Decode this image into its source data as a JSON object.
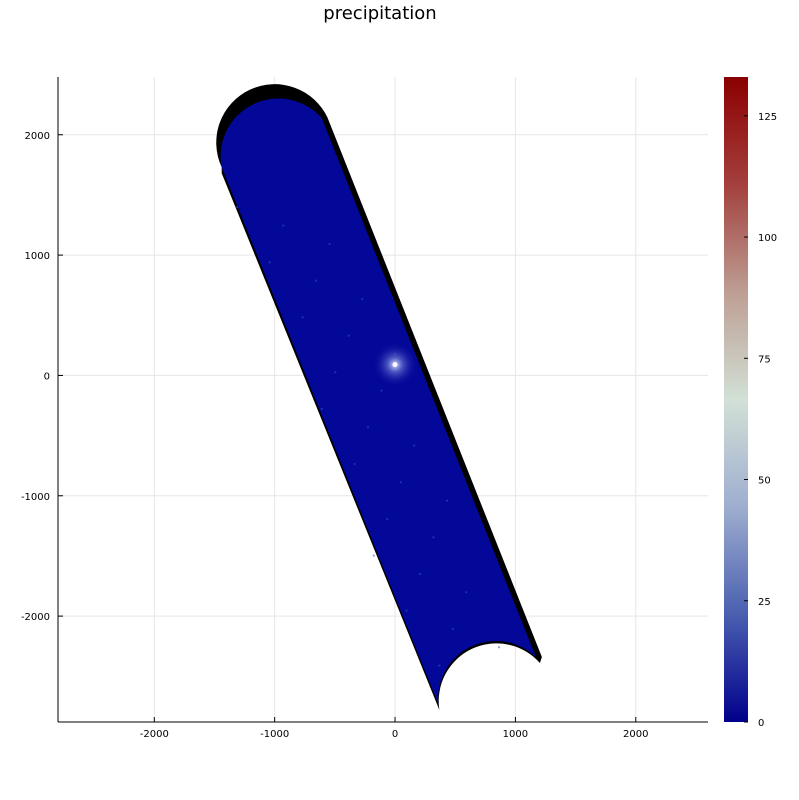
{
  "chart_data": {
    "type": "heatmap",
    "title": "precipitation",
    "xlabel": "",
    "ylabel": "",
    "xlim": [
      -2800,
      2600
    ],
    "ylim": [
      -2880,
      2480
    ],
    "grid": true,
    "x_ticks": [
      -2000,
      -1000,
      0,
      1000,
      2000
    ],
    "y_ticks": [
      2000,
      1000,
      0,
      -1000,
      -2000
    ],
    "colorbar": {
      "min": 0,
      "max": 133,
      "ticks": [
        0,
        25,
        50,
        75,
        100,
        125
      ],
      "colormap": [
        "#00008b",
        "#4a5fb0",
        "#9eaecf",
        "#d2e0d6",
        "#bd9e93",
        "#a3403d",
        "#8b0000"
      ]
    },
    "swath": {
      "top_arc_center": [
        -920,
        1870
      ],
      "bottom_arc_center": [
        850,
        -2670
      ],
      "arc_radius": 480,
      "upper_left_corner": [
        -1440,
        1730
      ],
      "upper_right_corner": [
        -560,
        2140
      ],
      "lower_left_corner": [
        360,
        -2730
      ],
      "lower_right_corner": [
        1220,
        -2340
      ],
      "fill_color": "#040899",
      "edge_color": "#000000",
      "hotspot": [
        0,
        40
      ]
    }
  }
}
